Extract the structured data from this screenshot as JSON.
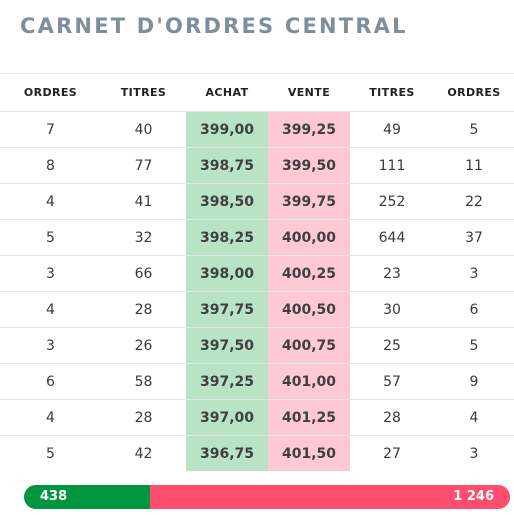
{
  "title": "CARNET D'ORDRES CENTRAL",
  "columns": {
    "buy_orders": "ORDRES",
    "buy_shares": "TITRES",
    "bid": "ACHAT",
    "ask": "VENTE",
    "sell_shares": "TITRES",
    "sell_orders": "ORDRES"
  },
  "rows": [
    {
      "buy_orders": "7",
      "buy_shares": "40",
      "bid": "399,00",
      "ask": "399,25",
      "sell_shares": "49",
      "sell_orders": "5"
    },
    {
      "buy_orders": "8",
      "buy_shares": "77",
      "bid": "398,75",
      "ask": "399,50",
      "sell_shares": "111",
      "sell_orders": "11"
    },
    {
      "buy_orders": "4",
      "buy_shares": "41",
      "bid": "398,50",
      "ask": "399,75",
      "sell_shares": "252",
      "sell_orders": "22"
    },
    {
      "buy_orders": "5",
      "buy_shares": "32",
      "bid": "398,25",
      "ask": "400,00",
      "sell_shares": "644",
      "sell_orders": "37"
    },
    {
      "buy_orders": "3",
      "buy_shares": "66",
      "bid": "398,00",
      "ask": "400,25",
      "sell_shares": "23",
      "sell_orders": "3"
    },
    {
      "buy_orders": "4",
      "buy_shares": "28",
      "bid": "397,75",
      "ask": "400,50",
      "sell_shares": "30",
      "sell_orders": "6"
    },
    {
      "buy_orders": "3",
      "buy_shares": "26",
      "bid": "397,50",
      "ask": "400,75",
      "sell_shares": "25",
      "sell_orders": "5"
    },
    {
      "buy_orders": "6",
      "buy_shares": "58",
      "bid": "397,25",
      "ask": "401,00",
      "sell_shares": "57",
      "sell_orders": "9"
    },
    {
      "buy_orders": "4",
      "buy_shares": "28",
      "bid": "397,00",
      "ask": "401,25",
      "sell_shares": "28",
      "sell_orders": "4"
    },
    {
      "buy_orders": "5",
      "buy_shares": "42",
      "bid": "396,75",
      "ask": "401,50",
      "sell_shares": "27",
      "sell_orders": "3"
    }
  ],
  "totals": {
    "buy_label": "438",
    "sell_label": "1 246",
    "buy_share": 0.26,
    "buy_color": "#00963f",
    "sell_color": "#ff4d6d"
  },
  "colors": {
    "bid_bg": "#b9e3c6",
    "ask_bg": "#fdc9d2",
    "title": "#7d8e9c"
  }
}
